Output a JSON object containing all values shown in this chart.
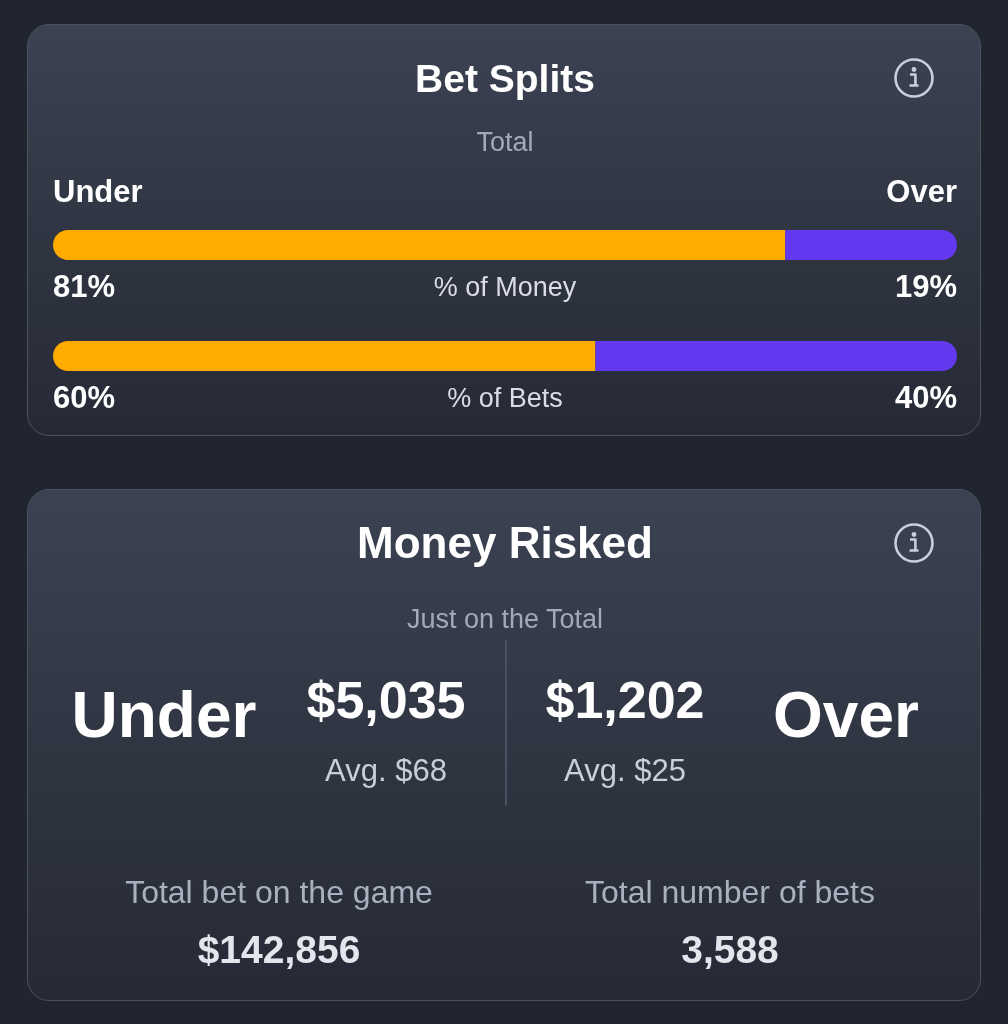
{
  "chart_data": [
    {
      "type": "bar",
      "title": "Bet Splits",
      "subtitle": "Total",
      "orientation": "horizontal",
      "stacked": true,
      "categories": [
        "% of Money",
        "% of Bets"
      ],
      "xlim": [
        0,
        100
      ],
      "series": [
        {
          "name": "Under",
          "color": "#ffab00",
          "values": [
            81,
            60
          ],
          "value_labels": [
            "81%",
            "60%"
          ]
        },
        {
          "name": "Over",
          "color": "#6338ee",
          "values": [
            19,
            40
          ],
          "value_labels": [
            "19%",
            "40%"
          ]
        }
      ]
    },
    {
      "type": "other",
      "title": "Money Risked",
      "subtitle": "Just on the Total",
      "annotations": [
        "Under",
        "$5,035",
        "Avg. $68",
        "$1,202",
        "Avg. $25",
        "Over",
        "Total bet on the game",
        "$142,856",
        "Total number of bets",
        "3,588"
      ]
    }
  ]
}
